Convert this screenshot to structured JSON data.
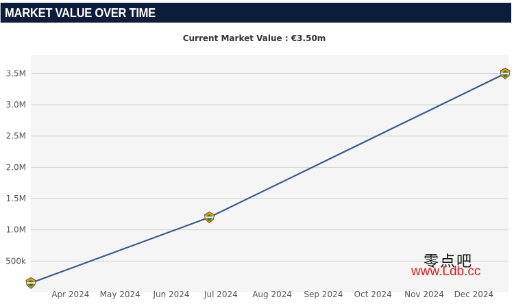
{
  "header": {
    "title": "MARKET VALUE OVER TIME"
  },
  "colors": {
    "header_bg": "#0b1d3a",
    "line": "#3d5a80",
    "marker": "#1f7a3a",
    "grid": "#d0d0d0",
    "plot_bg": "#f5f5f5",
    "watermark_url": "#e0171f"
  },
  "chart_data": {
    "type": "line",
    "title": "",
    "subtitle": "Current Market Value : €3.50m",
    "xlabel": "",
    "ylabel": "",
    "x": [
      "2024-03-08",
      "2024-06-24",
      "2024-12-20"
    ],
    "series": [
      {
        "values": [
          150000,
          1200000,
          3500000
        ],
        "marker_icon": "club-crest-icon"
      }
    ],
    "xlim": [
      "2024-03-08",
      "2024-12-22"
    ],
    "ylim": [
      0,
      3800000
    ],
    "yticks": [
      500000,
      1000000,
      1500000,
      2000000,
      2500000,
      3000000,
      3500000
    ],
    "ytick_labels": [
      "500k",
      "1.0M",
      "1.5M",
      "2.0M",
      "2.5M",
      "3.0M",
      "3.5M"
    ],
    "xticks": [
      "2024-04-01",
      "2024-05-01",
      "2024-06-01",
      "2024-07-01",
      "2024-08-01",
      "2024-09-01",
      "2024-10-01",
      "2024-11-01",
      "2024-12-01"
    ],
    "xtick_labels": [
      "Apr 2024",
      "May 2024",
      "Jun 2024",
      "Jul 2024",
      "Aug 2024",
      "Sep 2024",
      "Oct 2024",
      "Nov 2024",
      "Dec 2024"
    ],
    "grid": true,
    "legend": "none"
  },
  "watermark": {
    "cn": "零点吧",
    "url": "www.Ldb.cc"
  }
}
